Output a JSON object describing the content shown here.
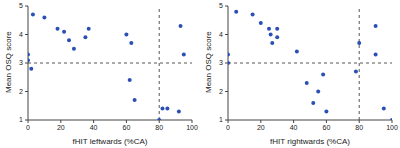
{
  "chart_data": [
    {
      "type": "scatter",
      "x_label": "fHIT leftwards (%CA)",
      "y_label": "Mean OSQ score",
      "color": "#2a4fb5",
      "x": [
        0,
        0,
        2,
        3,
        10,
        18,
        22,
        25,
        28,
        35,
        37,
        60,
        62,
        63,
        65,
        80,
        82,
        85,
        92,
        93,
        95
      ],
      "values": [
        3.1,
        3.3,
        2.8,
        4.7,
        4.6,
        4.2,
        4.1,
        3.8,
        3.5,
        3.9,
        4.2,
        4.0,
        2.4,
        3.7,
        1.7,
        1.0,
        1.4,
        1.4,
        1.3,
        4.3,
        3.3
      ],
      "xlim": [
        0,
        100
      ],
      "xticks": [
        0,
        20,
        40,
        60,
        80,
        100
      ],
      "ylim": [
        1,
        5
      ],
      "yticks": [
        1,
        2,
        3,
        4,
        5
      ],
      "reference_lines": {
        "x": 80,
        "y": 3
      }
    },
    {
      "type": "scatter",
      "x_label": "fHIT rightwards (%CA)",
      "y_label": "Mean OSQ score",
      "color": "#2a4fb5",
      "x": [
        0,
        0,
        5,
        15,
        20,
        25,
        26,
        27,
        30,
        30,
        42,
        48,
        52,
        55,
        58,
        60,
        78,
        80,
        90,
        90,
        95,
        100
      ],
      "values": [
        3.0,
        3.3,
        4.8,
        4.7,
        4.4,
        4.2,
        4.0,
        3.7,
        3.9,
        4.2,
        3.4,
        2.3,
        1.6,
        2.0,
        2.6,
        1.3,
        2.7,
        3.7,
        4.3,
        3.3,
        1.4,
        1.0
      ],
      "xlim": [
        0,
        100
      ],
      "xticks": [
        0,
        20,
        40,
        60,
        80,
        100
      ],
      "ylim": [
        1,
        5
      ],
      "yticks": [
        1,
        2,
        3,
        4,
        5
      ],
      "reference_lines": {
        "x": 80,
        "y": 3
      }
    }
  ]
}
